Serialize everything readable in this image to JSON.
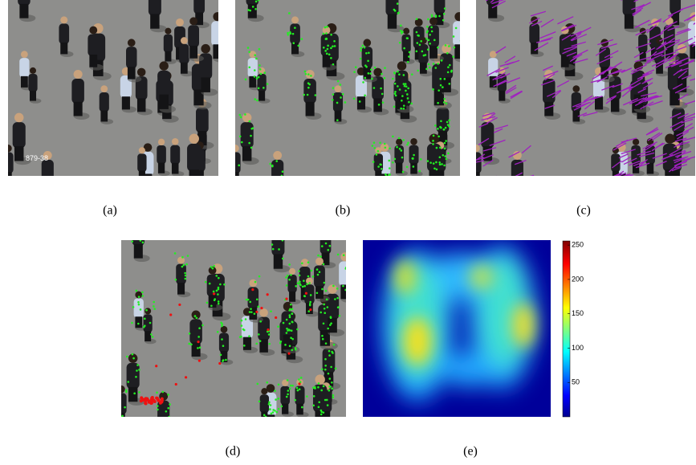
{
  "figure": {
    "panels": [
      {
        "caption": "(a)",
        "overlay_text": "879-38"
      },
      {
        "caption": "(b)"
      },
      {
        "caption": "(c)"
      },
      {
        "caption": "(d)"
      },
      {
        "caption": "(e)"
      }
    ],
    "colorbar": {
      "lim": [
        0,
        256
      ],
      "ticks": [
        50,
        100,
        150,
        200,
        250
      ]
    }
  }
}
